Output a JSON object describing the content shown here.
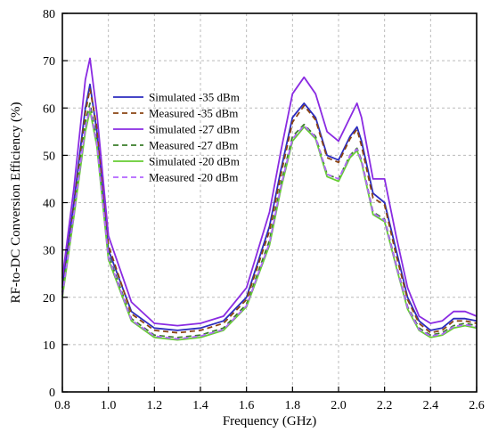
{
  "chart_data": {
    "type": "line",
    "xlabel": "Frequency (GHz)",
    "ylabel": "RF-to-DC Conversion Efficiency (%)",
    "xlim": [
      0.8,
      2.6
    ],
    "ylim": [
      0,
      80
    ],
    "xticks": [
      "0.8",
      "1.0",
      "1.2",
      "1.4",
      "1.6",
      "1.8",
      "2.0",
      "2.2",
      "2.4",
      "2.6"
    ],
    "yticks": [
      "0",
      "10",
      "20",
      "30",
      "40",
      "50",
      "60",
      "70",
      "80"
    ],
    "grid": true,
    "legend_position": "left-middle",
    "x": [
      0.8,
      0.85,
      0.9,
      0.92,
      0.95,
      1.0,
      1.1,
      1.2,
      1.3,
      1.4,
      1.5,
      1.6,
      1.7,
      1.75,
      1.8,
      1.85,
      1.9,
      1.95,
      2.0,
      2.05,
      2.08,
      2.1,
      2.15,
      2.2,
      2.25,
      2.3,
      2.35,
      2.4,
      2.45,
      2.5,
      2.55,
      2.6
    ],
    "series": [
      {
        "name": "Simulated -35 dBm",
        "color": "#2b2bbf",
        "dash": "solid",
        "values": [
          22,
          40,
          60,
          65,
          55,
          30,
          17,
          13.5,
          13,
          13.5,
          15,
          20,
          35,
          47,
          58,
          61,
          58,
          50,
          49,
          54,
          56,
          53,
          42,
          40,
          30,
          20,
          15,
          13,
          13.5,
          15.5,
          15.5,
          15
        ]
      },
      {
        "name": "Measured -35 dBm",
        "color": "#8b4513",
        "dash": "dashed",
        "values": [
          21,
          39,
          59,
          64,
          56,
          31,
          16.5,
          13,
          12.5,
          13,
          14.5,
          19.5,
          34,
          46,
          57,
          60.5,
          57.5,
          49.5,
          48.5,
          53.5,
          55.5,
          52,
          41,
          39.5,
          29,
          19.5,
          14.5,
          12.5,
          13,
          15,
          15,
          14.5
        ]
      },
      {
        "name": "Simulated -27 dBm",
        "color": "#8a2be2",
        "dash": "solid",
        "values": [
          24,
          43,
          66,
          70.5,
          59,
          33,
          19,
          14.5,
          14,
          14.5,
          16,
          22,
          38,
          51,
          63,
          66.5,
          63,
          55,
          53,
          58,
          61,
          58,
          45,
          45,
          33,
          22,
          16,
          14.5,
          15,
          17,
          17,
          16
        ]
      },
      {
        "name": "Measured -27 dBm",
        "color": "#3a7d2a",
        "dash": "dashed",
        "values": [
          21,
          38,
          57,
          61,
          53,
          29,
          15.5,
          12,
          11.5,
          12,
          13.5,
          18.5,
          32,
          44,
          54,
          56.5,
          54,
          46,
          45,
          50,
          51.5,
          49,
          38,
          36.5,
          27,
          18,
          13.5,
          12,
          12.5,
          14,
          14.5,
          14
        ]
      },
      {
        "name": "Simulated -20 dBm",
        "color": "#66cc33",
        "dash": "solid",
        "values": [
          20,
          37,
          55,
          59.5,
          52,
          28,
          15,
          11.5,
          11,
          11.5,
          13,
          18,
          31,
          43,
          53,
          56,
          53.5,
          45.5,
          44.5,
          49.5,
          51,
          48.5,
          37.5,
          36,
          26.5,
          17.5,
          13,
          11.5,
          12,
          13.5,
          14,
          13.5
        ]
      },
      {
        "name": "Measured -20 dBm",
        "color": "#b266ff",
        "dash": "dashed",
        "values": [
          20.5,
          37.5,
          56,
          60,
          52.5,
          28.5,
          15.2,
          11.8,
          11.2,
          11.8,
          13.2,
          18.2,
          31.5,
          43.5,
          53.5,
          56.3,
          53.8,
          46,
          45,
          50,
          51.3,
          48.8,
          37.8,
          36.3,
          26.8,
          17.8,
          13.2,
          11.8,
          12.2,
          13.8,
          14.2,
          13.8
        ]
      }
    ]
  }
}
